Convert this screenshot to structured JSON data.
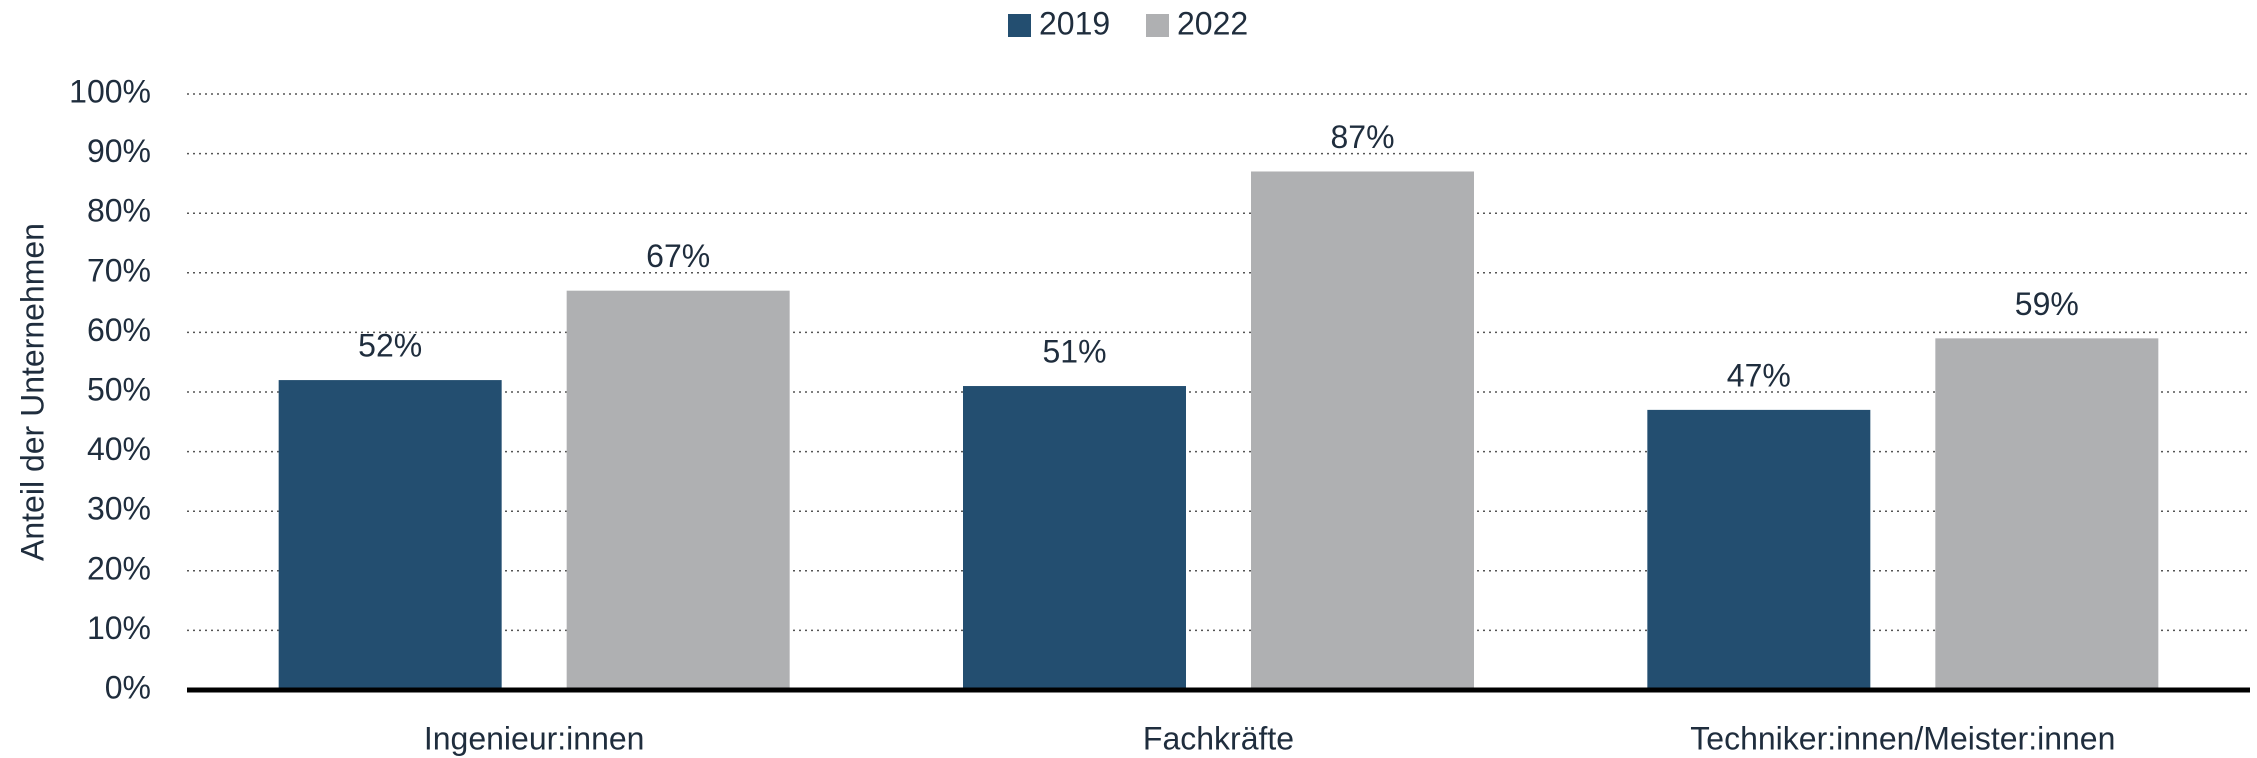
{
  "chart_data": {
    "type": "bar",
    "y_label": "Anteil der Unternehmen",
    "categories": [
      "Ingenieur:innen",
      "Fachkräfte",
      "Techniker:innen/Meister:innen"
    ],
    "series": [
      {
        "name": "2019",
        "color": "#234e70",
        "values": [
          52,
          51,
          47
        ],
        "value_labels": [
          "52%",
          "51%",
          "47%"
        ]
      },
      {
        "name": "2022",
        "color": "#afb0b2",
        "values": [
          67,
          87,
          59
        ],
        "value_labels": [
          "67%",
          "87%",
          "59%"
        ]
      }
    ],
    "ylim": [
      0,
      100
    ],
    "yticks": [
      {
        "value": 0,
        "label": "0%"
      },
      {
        "value": 10,
        "label": "10%"
      },
      {
        "value": 20,
        "label": "20%"
      },
      {
        "value": 30,
        "label": "30%"
      },
      {
        "value": 40,
        "label": "40%"
      },
      {
        "value": 50,
        "label": "50%"
      },
      {
        "value": 60,
        "label": "60%"
      },
      {
        "value": 70,
        "label": "70%"
      },
      {
        "value": 80,
        "label": "80%"
      },
      {
        "value": 90,
        "label": "90%"
      },
      {
        "value": 100,
        "label": "100%"
      }
    ],
    "grid": true,
    "legend": "top"
  }
}
